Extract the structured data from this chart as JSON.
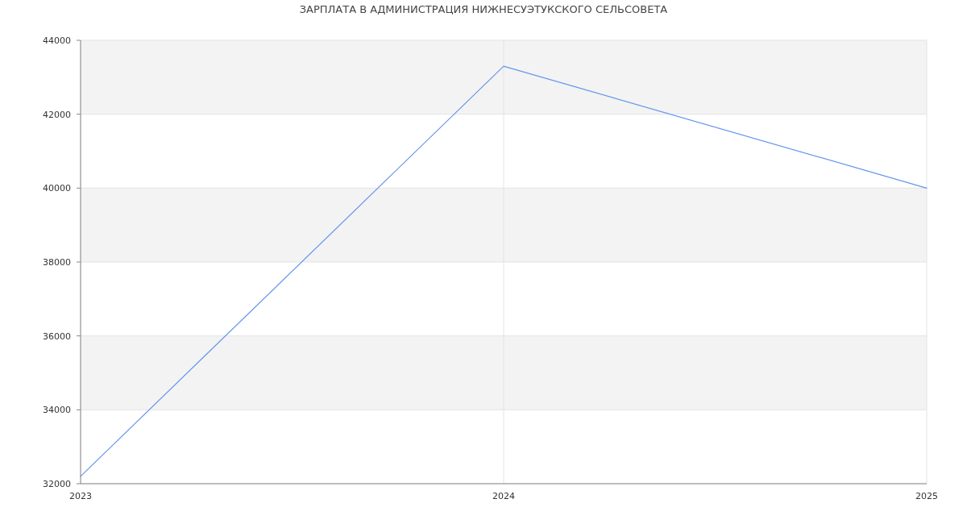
{
  "chart_data": {
    "type": "line",
    "title": "ЗАРПЛАТА В АДМИНИСТРАЦИЯ НИЖНЕСУЭТУКСКОГО СЕЛЬСОВЕТА",
    "x": [
      2023,
      2024,
      2025
    ],
    "series": [
      {
        "color": "#6495ed",
        "values": [
          32200,
          43300,
          40000
        ]
      }
    ],
    "xlim": [
      2023,
      2025
    ],
    "xticks": [
      2023,
      2024,
      2025
    ],
    "ylim": [
      32000,
      44000
    ],
    "yticks": [
      32000,
      34000,
      36000,
      38000,
      40000,
      42000,
      44000
    ],
    "grid": true,
    "marker": "none",
    "line_style": "solid"
  }
}
